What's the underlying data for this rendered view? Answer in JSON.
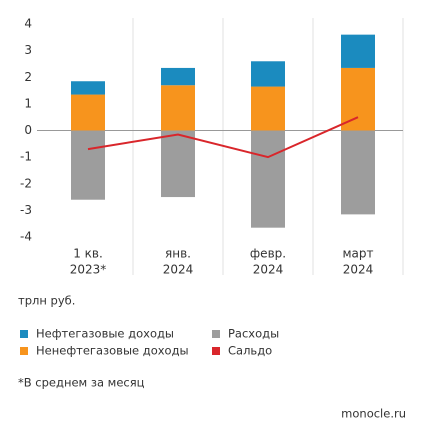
{
  "chart_data": {
    "type": "bar",
    "categories": [
      [
        "1 кв.",
        "2023*"
      ],
      [
        "янв.",
        "2024"
      ],
      [
        "февр.",
        "2024"
      ],
      [
        "март",
        "2024"
      ]
    ],
    "series": [
      {
        "name": "Нефтегазовые доходы",
        "type": "bar",
        "color": "#1b8bbf",
        "values": [
          0.5,
          0.65,
          0.95,
          1.25
        ]
      },
      {
        "name": "Ненефтегазовые доходы",
        "type": "bar",
        "color": "#f7941d",
        "values": [
          1.35,
          1.7,
          1.65,
          2.35
        ]
      },
      {
        "name": "Расходы",
        "type": "bar",
        "color": "#9d9d9d",
        "values": [
          -2.6,
          -2.5,
          -3.65,
          -3.15
        ]
      },
      {
        "name": "Сальдо",
        "type": "line",
        "color": "#d9262b",
        "values": [
          -0.7,
          -0.15,
          -1.0,
          0.5
        ]
      }
    ],
    "ylim": [
      -4,
      4
    ],
    "yticks": [
      -4,
      -3,
      -2,
      -1,
      0,
      1,
      2,
      3,
      4
    ],
    "unit_label": "трлн руб.",
    "footnote": "*В среднем за месяц",
    "source": "monocle.ru"
  }
}
